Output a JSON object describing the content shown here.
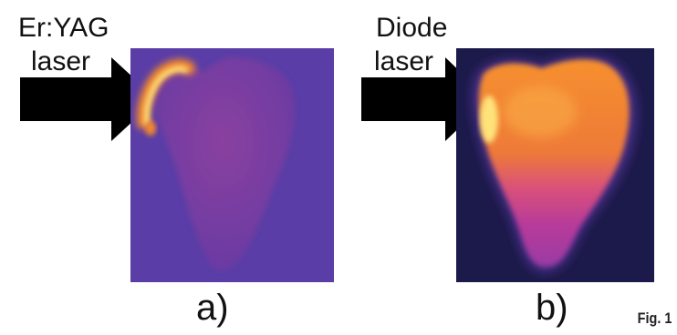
{
  "panel_a": {
    "label_line1": "Er:YAG",
    "label_line2": "laser",
    "caption": "a)"
  },
  "panel_b": {
    "label_line1": "Diode",
    "label_line2": "laser",
    "caption": "b)"
  },
  "figure_number": "Fig. 1",
  "colors": {
    "background_a": "#5a3da6",
    "background_b": "#1c1a4a",
    "tooth_a": "#7a3fa0",
    "hot_orange": "#f4892b",
    "hot_yellow": "#ffe27a",
    "arrow": "#000000"
  }
}
